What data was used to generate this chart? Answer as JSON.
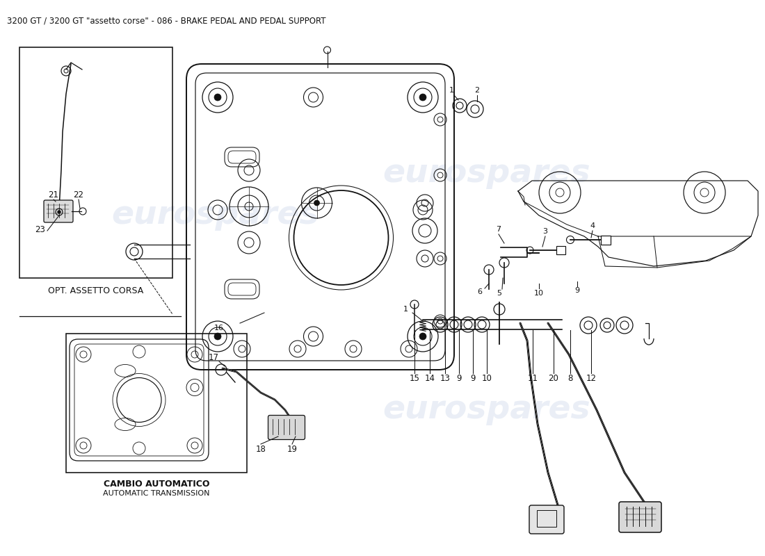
{
  "title": "3200 GT / 3200 GT \"assetto corse\" - 086 - BRAKE PEDAL AND PEDAL SUPPORT",
  "title_fontsize": 8.5,
  "bg_color": "#ffffff",
  "lc": "#111111",
  "watermark": "eurospares",
  "wm_color": "#c8d4e8",
  "wm_alpha": 0.38,
  "opt_label": "OPT. ASSETTO CORSA",
  "cambio_label1": "CAMBIO AUTOMATICO",
  "cambio_label2": "AUTOMATIC TRANSMISSION",
  "lfs": 8,
  "nfs": 8.5
}
